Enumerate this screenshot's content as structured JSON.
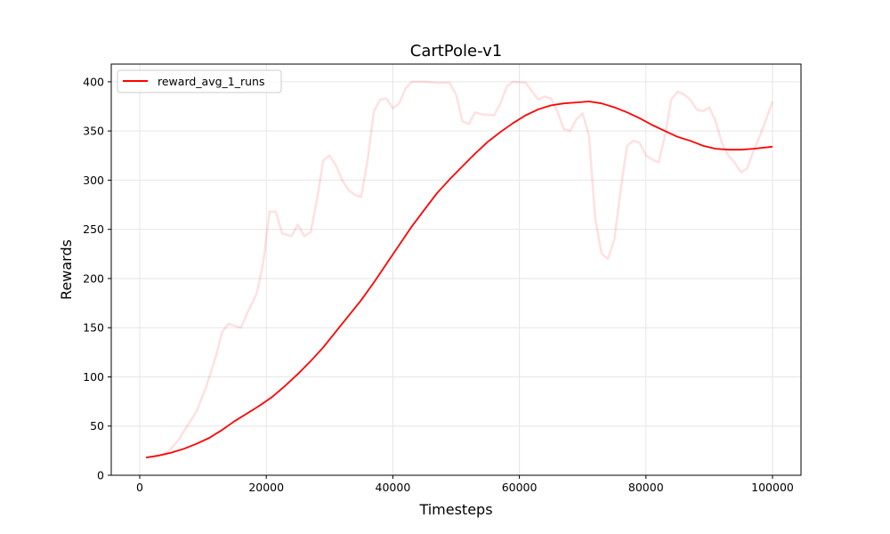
{
  "chart_data": {
    "type": "line",
    "title": "CartPole-v1",
    "xlabel": "Timesteps",
    "ylabel": "Rewards",
    "xlim": [
      -4500,
      104500
    ],
    "ylim": [
      0,
      418
    ],
    "xticks": [
      0,
      20000,
      40000,
      60000,
      80000,
      100000
    ],
    "xtick_labels": [
      "0",
      "20000",
      "40000",
      "60000",
      "80000",
      "100000"
    ],
    "yticks": [
      0,
      50,
      100,
      150,
      200,
      250,
      300,
      350,
      400
    ],
    "ytick_labels": [
      "0",
      "50",
      "100",
      "150",
      "200",
      "250",
      "300",
      "350",
      "400"
    ],
    "grid": true,
    "legend_position": "top-left",
    "colors": {
      "series": "#ff0000",
      "raw": "#ff0000",
      "raw_opacity": 0.12,
      "grid": "#e6e6e6",
      "frame": "#000000"
    },
    "series": [
      {
        "name": "reward_avg_1_runs",
        "x": [
          1000,
          2000,
          3000,
          5000,
          7000,
          9000,
          11000,
          13000,
          15000,
          17000,
          19000,
          21000,
          23000,
          25000,
          27000,
          29000,
          31000,
          33000,
          35000,
          37000,
          39000,
          41000,
          43000,
          45000,
          47000,
          49000,
          51000,
          53000,
          55000,
          57000,
          59000,
          61000,
          63000,
          65000,
          67000,
          69000,
          71000,
          73000,
          75000,
          77000,
          79000,
          81000,
          83000,
          85000,
          87000,
          89000,
          91000,
          93000,
          95000,
          97000,
          100000
        ],
        "y": [
          18,
          19,
          20,
          23,
          27,
          32,
          38,
          46,
          55,
          63,
          71,
          80,
          91,
          103,
          116,
          130,
          146,
          162,
          178,
          196,
          215,
          234,
          253,
          270,
          287,
          301,
          314,
          327,
          339,
          349,
          358,
          366,
          372,
          376,
          378,
          379,
          380,
          378,
          374,
          369,
          363,
          356,
          350,
          344,
          340,
          335,
          332,
          331,
          331,
          332,
          334
        ]
      },
      {
        "name": "",
        "role": "raw",
        "x": [
          1000,
          3000,
          4500,
          6000,
          7500,
          9000,
          10500,
          12000,
          13000,
          14000,
          15000,
          16000,
          17000,
          18500,
          19500,
          20500,
          21500,
          22500,
          24000,
          25000,
          26000,
          27000,
          28000,
          29000,
          30000,
          31000,
          32000,
          33000,
          34000,
          35000,
          36000,
          37000,
          38000,
          39000,
          40000,
          41000,
          42000,
          43000,
          45000,
          47000,
          49000,
          50000,
          51000,
          52000,
          53000,
          54000,
          56000,
          57000,
          58000,
          59000,
          61000,
          62000,
          63000,
          64000,
          65000,
          66000,
          67000,
          68000,
          69000,
          70000,
          71000,
          72000,
          73000,
          74000,
          75000,
          76000,
          77000,
          78000,
          79000,
          80000,
          81000,
          82000,
          83000,
          84000,
          85000,
          86000,
          87000,
          88000,
          89000,
          90000,
          91000,
          92000,
          93000,
          94000,
          95000,
          96000,
          97000,
          98000,
          99000,
          100000
        ],
        "y": [
          18,
          20,
          24,
          35,
          50,
          65,
          90,
          120,
          145,
          154,
          152,
          150,
          165,
          185,
          215,
          268,
          268,
          246,
          243,
          255,
          243,
          247,
          280,
          320,
          325,
          315,
          300,
          290,
          285,
          283,
          320,
          370,
          382,
          383,
          373,
          378,
          393,
          400,
          400,
          399,
          399,
          387,
          360,
          357,
          369,
          367,
          366,
          378,
          395,
          400,
          399,
          390,
          382,
          385,
          383,
          370,
          352,
          350,
          362,
          368,
          345,
          260,
          225,
          220,
          240,
          290,
          335,
          340,
          338,
          325,
          321,
          318,
          345,
          382,
          390,
          387,
          382,
          372,
          370,
          374,
          360,
          338,
          325,
          318,
          308,
          312,
          330,
          345,
          362,
          380
        ]
      }
    ]
  }
}
